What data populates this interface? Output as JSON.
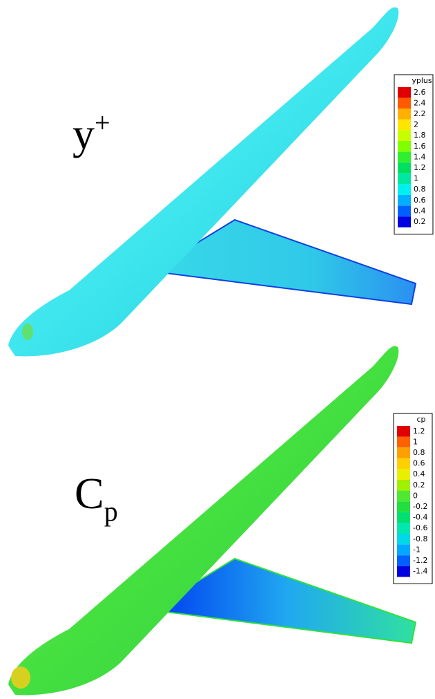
{
  "panels": [
    {
      "label": {
        "main": "y",
        "mark": "+"
      },
      "legend": {
        "title": "yplus",
        "entries": [
          {
            "label": "2.6",
            "color": "#e00000"
          },
          {
            "label": "2.4",
            "color": "#ff5a00"
          },
          {
            "label": "2.2",
            "color": "#ffb000"
          },
          {
            "label": "2",
            "color": "#ffe600"
          },
          {
            "label": "1.8",
            "color": "#c8ff00"
          },
          {
            "label": "1.6",
            "color": "#80ff00"
          },
          {
            "label": "1.4",
            "color": "#30ee30"
          },
          {
            "label": "1.2",
            "color": "#00e060"
          },
          {
            "label": "1",
            "color": "#00e8a0"
          },
          {
            "label": "0.8",
            "color": "#00f0f0"
          },
          {
            "label": "0.6",
            "color": "#00b0ff"
          },
          {
            "label": "0.4",
            "color": "#0060ff"
          },
          {
            "label": "0.2",
            "color": "#0000e0"
          }
        ]
      }
    },
    {
      "label": {
        "main": "C",
        "mark": "p"
      },
      "legend": {
        "title": "cp",
        "entries": [
          {
            "label": "1.2",
            "color": "#e00000"
          },
          {
            "label": "1",
            "color": "#ff6000"
          },
          {
            "label": "0.8",
            "color": "#ffa000"
          },
          {
            "label": "0.6",
            "color": "#ffd000"
          },
          {
            "label": "0.4",
            "color": "#e8f000"
          },
          {
            "label": "0.2",
            "color": "#a0f000"
          },
          {
            "label": "0",
            "color": "#50e830"
          },
          {
            "label": "-0.2",
            "color": "#20e040"
          },
          {
            "label": "-0.4",
            "color": "#00e070"
          },
          {
            "label": "-0.6",
            "color": "#00e8b0"
          },
          {
            "label": "-0.8",
            "color": "#00d8e8"
          },
          {
            "label": "-1",
            "color": "#00a8ff"
          },
          {
            "label": "-1.2",
            "color": "#0060ff"
          },
          {
            "label": "-1.4",
            "color": "#0000e0"
          }
        ]
      }
    }
  ]
}
